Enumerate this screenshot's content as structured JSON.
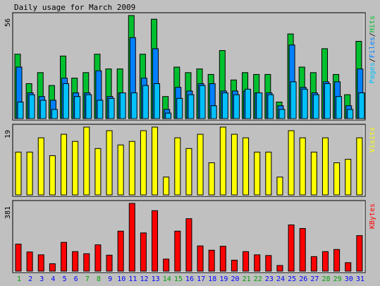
{
  "title": "Daily usage for March 2009",
  "colors": {
    "background": "#c0c0c0",
    "frame": "#ffffff",
    "hits": "#00c030",
    "files": "#0080ff",
    "pages": "#00c0ff",
    "visits": "#ffff00",
    "kbytes": "#ff0000",
    "weekend_label": "#00a000",
    "weekday_label": "#0000ff"
  },
  "chart_data": [
    {
      "type": "bar",
      "name": "hits-files-pages",
      "max_label": "56",
      "ylim": [
        0,
        56
      ],
      "legend": [
        "Pages",
        "Files",
        "Hits"
      ],
      "legend_placement": "right",
      "categories": [
        "1",
        "2",
        "3",
        "4",
        "5",
        "6",
        "7",
        "8",
        "9",
        "10",
        "11",
        "12",
        "13",
        "14",
        "15",
        "16",
        "17",
        "18",
        "19",
        "20",
        "21",
        "22",
        "23",
        "24",
        "25",
        "26",
        "27",
        "28",
        "29",
        "30",
        "31"
      ],
      "weekend": [
        1,
        7,
        8,
        14,
        15,
        21,
        22,
        28,
        29
      ],
      "series": [
        {
          "name": "Hits",
          "values": [
            35,
            19,
            25,
            18,
            34,
            22,
            25,
            35,
            27,
            27,
            56,
            35,
            54,
            12,
            28,
            25,
            27,
            24,
            37,
            21,
            25,
            24,
            24,
            9,
            46,
            28,
            25,
            38,
            24,
            13,
            42
          ]
        },
        {
          "name": "Files",
          "values": [
            28,
            14,
            12,
            10,
            22,
            14,
            14,
            26,
            12,
            14,
            44,
            22,
            38,
            5,
            17,
            15,
            19,
            19,
            15,
            15,
            15,
            14,
            14,
            7,
            40,
            17,
            14,
            20,
            20,
            7,
            27
          ]
        },
        {
          "name": "Pages",
          "values": [
            9,
            13,
            10,
            5,
            19,
            12,
            13,
            10,
            11,
            14,
            14,
            18,
            19,
            3,
            11,
            13,
            18,
            7,
            14,
            13,
            16,
            14,
            13,
            5,
            20,
            16,
            13,
            19,
            12,
            5,
            14
          ]
        }
      ]
    },
    {
      "type": "bar",
      "name": "visits",
      "max_label": "19",
      "ylim": [
        0,
        19
      ],
      "legend": [
        "Visits"
      ],
      "legend_placement": "right",
      "categories": [
        "1",
        "2",
        "3",
        "4",
        "5",
        "6",
        "7",
        "8",
        "9",
        "10",
        "11",
        "12",
        "13",
        "14",
        "15",
        "16",
        "17",
        "18",
        "19",
        "20",
        "21",
        "22",
        "23",
        "24",
        "25",
        "26",
        "27",
        "28",
        "29",
        "30",
        "31"
      ],
      "series": [
        {
          "name": "Visits",
          "values": [
            12,
            12,
            16,
            11,
            17,
            15,
            19,
            13,
            18,
            14,
            15,
            18,
            19,
            5,
            16,
            13,
            17,
            9,
            19,
            17,
            16,
            12,
            12,
            5,
            18,
            16,
            12,
            16,
            9,
            10,
            16
          ]
        }
      ]
    },
    {
      "type": "bar",
      "name": "kbytes",
      "max_label": "381",
      "ylim": [
        0,
        381
      ],
      "legend": [
        "KBytes"
      ],
      "legend_placement": "right",
      "categories": [
        "1",
        "2",
        "3",
        "4",
        "5",
        "6",
        "7",
        "8",
        "9",
        "10",
        "11",
        "12",
        "13",
        "14",
        "15",
        "16",
        "17",
        "18",
        "19",
        "20",
        "21",
        "22",
        "23",
        "24",
        "25",
        "26",
        "27",
        "28",
        "29",
        "30",
        "31"
      ],
      "series": [
        {
          "name": "KBytes",
          "values": [
            152,
            108,
            92,
            42,
            162,
            110,
            98,
            148,
            90,
            225,
            381,
            215,
            340,
            68,
            225,
            295,
            142,
            118,
            140,
            62,
            110,
            92,
            88,
            32,
            260,
            240,
            82,
            110,
            122,
            48,
            200
          ]
        }
      ]
    }
  ]
}
